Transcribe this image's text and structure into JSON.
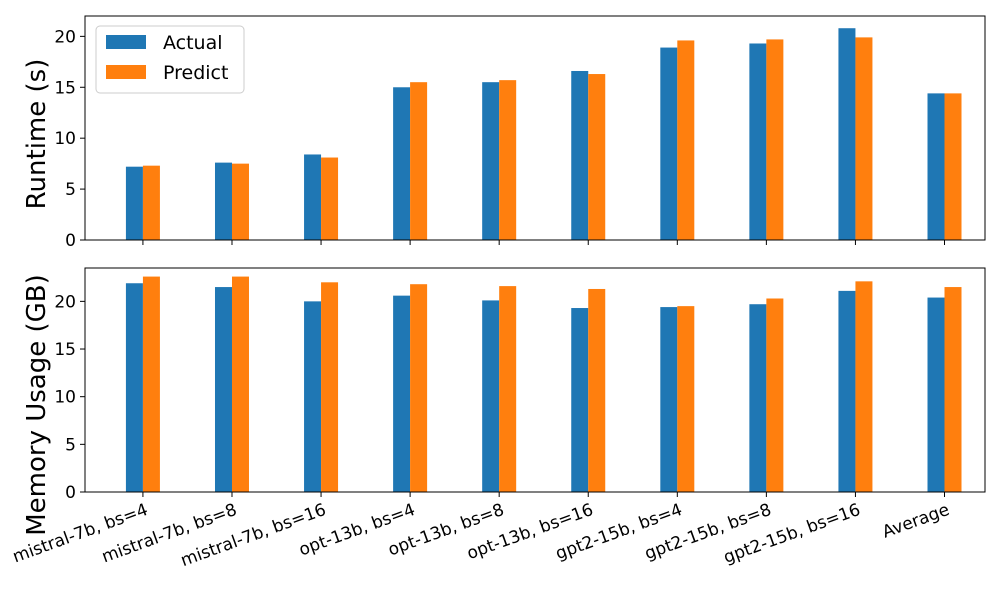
{
  "chart_data": [
    {
      "type": "bar",
      "ylabel": "Runtime (s)",
      "ylim": [
        0,
        22
      ],
      "yticks": [
        0,
        5,
        10,
        15,
        20
      ],
      "categories": [
        "mistral-7b, bs=4",
        "mistral-7b, bs=8",
        "mistral-7b, bs=16",
        "opt-13b, bs=4",
        "opt-13b, bs=8",
        "opt-13b, bs=16",
        "gpt2-15b, bs=4",
        "gpt2-15b, bs=8",
        "gpt2-15b, bs=16",
        "Average"
      ],
      "series": [
        {
          "name": "Actual",
          "color": "#1f77b4",
          "values": [
            7.2,
            7.6,
            8.4,
            15.0,
            15.5,
            16.6,
            18.9,
            19.3,
            20.8,
            14.4
          ]
        },
        {
          "name": "Predict",
          "color": "#ff7f0e",
          "values": [
            7.3,
            7.5,
            8.1,
            15.5,
            15.7,
            16.3,
            19.6,
            19.7,
            19.9,
            14.4
          ]
        }
      ],
      "legend": "top-left",
      "grid": false
    },
    {
      "type": "bar",
      "ylabel": "Memory Usage (GB)",
      "ylim": [
        0,
        23.5
      ],
      "yticks": [
        0,
        5,
        10,
        15,
        20
      ],
      "categories": [
        "mistral-7b, bs=4",
        "mistral-7b, bs=8",
        "mistral-7b, bs=16",
        "opt-13b, bs=4",
        "opt-13b, bs=8",
        "opt-13b, bs=16",
        "gpt2-15b, bs=4",
        "gpt2-15b, bs=8",
        "gpt2-15b, bs=16",
        "Average"
      ],
      "series": [
        {
          "name": "Actual",
          "color": "#1f77b4",
          "values": [
            21.9,
            21.5,
            20.0,
            20.6,
            20.1,
            19.3,
            19.4,
            19.7,
            21.1,
            20.4
          ]
        },
        {
          "name": "Predict",
          "color": "#ff7f0e",
          "values": [
            22.6,
            22.6,
            22.0,
            21.8,
            21.6,
            21.3,
            19.5,
            20.3,
            22.1,
            21.5
          ]
        }
      ],
      "grid": false
    }
  ]
}
